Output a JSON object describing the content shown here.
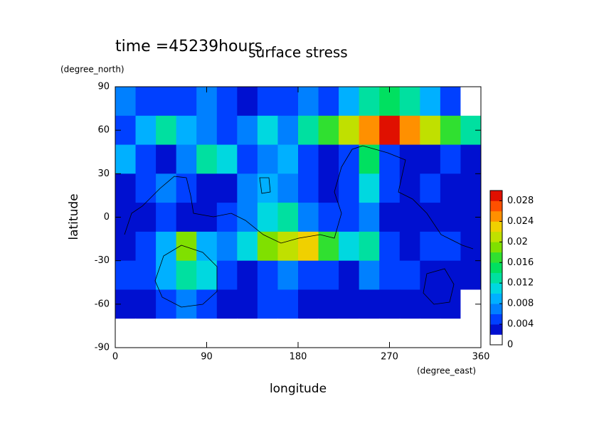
{
  "chart_data": {
    "type": "contour",
    "title": "surface stress",
    "subtitle": "time =45239hours",
    "x_label": "longitude",
    "x_unit": "(degree_east)",
    "y_label": "latitude",
    "y_unit": "(degree_north)",
    "xlim": [
      0,
      360
    ],
    "xticks": [
      0,
      90,
      180,
      270,
      360
    ],
    "ylim": [
      -90,
      90
    ],
    "yticks": [
      -90,
      -60,
      -30,
      0,
      30,
      60,
      90
    ],
    "x": [
      10,
      30,
      50,
      70,
      90,
      110,
      130,
      150,
      170,
      190,
      210,
      230,
      250,
      270,
      290,
      310,
      330,
      350
    ],
    "y": [
      80,
      60,
      40,
      20,
      0,
      -20,
      -40,
      -60,
      -80
    ],
    "z": [
      [
        0.006,
        0.004,
        0.005,
        0.004,
        0.006,
        0.004,
        0.003,
        0.004,
        0.004,
        0.006,
        0.005,
        0.008,
        0.012,
        0.014,
        0.012,
        0.008,
        0.005,
        0
      ],
      [
        0.005,
        0.008,
        0.012,
        0.008,
        0.006,
        0.004,
        0.006,
        0.01,
        0.006,
        0.012,
        0.016,
        0.02,
        0.024,
        0.028,
        0.024,
        0.02,
        0.016,
        0.012
      ],
      [
        0.008,
        0.005,
        0.003,
        0.006,
        0.012,
        0.01,
        0.004,
        0.006,
        0.008,
        0.004,
        0.002,
        0.004,
        0.014,
        0.004,
        0.002,
        0.003,
        0.004,
        0.003
      ],
      [
        0.003,
        0.004,
        0.006,
        0.004,
        0.002,
        0.003,
        0.006,
        0.008,
        0.006,
        0.004,
        0.003,
        0.004,
        0.01,
        0.004,
        0.002,
        0.004,
        0.003,
        0.002
      ],
      [
        0.002,
        0.003,
        0.004,
        0.003,
        0.002,
        0.004,
        0.006,
        0.01,
        0.012,
        0.006,
        0.004,
        0.004,
        0.006,
        0.003,
        0.002,
        0.003,
        0.002,
        0.002
      ],
      [
        0.003,
        0.004,
        0.008,
        0.018,
        0.008,
        0.006,
        0.01,
        0.018,
        0.02,
        0.022,
        0.016,
        0.01,
        0.012,
        0.004,
        0.003,
        0.004,
        0.004,
        0.003
      ],
      [
        0.004,
        0.005,
        0.008,
        0.012,
        0.01,
        0.004,
        0.003,
        0.004,
        0.006,
        0.005,
        0.004,
        0.003,
        0.006,
        0.004,
        0.005,
        0.003,
        0.002,
        0.003
      ],
      [
        0.003,
        0.002,
        0.004,
        0.006,
        0.004,
        0.002,
        0.003,
        0.004,
        0.004,
        0.002,
        0.003,
        0.002,
        0.002,
        0.003,
        0.002,
        0.003,
        0.002,
        0
      ],
      [
        0,
        0,
        0,
        0,
        0,
        0,
        0,
        0,
        0,
        0,
        0,
        0,
        0,
        0,
        0,
        0,
        0,
        0
      ]
    ],
    "levels": [
      0,
      0.002,
      0.004,
      0.006,
      0.008,
      0.01,
      0.012,
      0.014,
      0.016,
      0.018,
      0.02,
      0.022,
      0.024,
      0.026,
      0.028,
      0.03
    ],
    "colors": [
      "#ffffff",
      "#0010d0",
      "#0040ff",
      "#0080ff",
      "#00b0ff",
      "#00d8e0",
      "#00e0a0",
      "#00e060",
      "#30e030",
      "#80e000",
      "#c0e000",
      "#f0d000",
      "#ff9000",
      "#ff5000",
      "#e01000"
    ],
    "colorbar_ticks": [
      0,
      0.004,
      0.008,
      0.012,
      0.016,
      0.02,
      0.024,
      0.028
    ]
  }
}
